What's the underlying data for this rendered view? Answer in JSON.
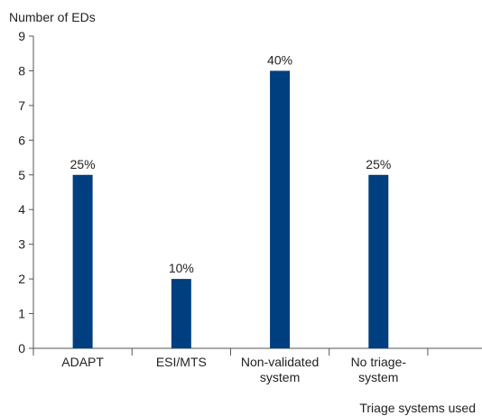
{
  "chart_data": {
    "type": "bar",
    "ylabel": "Number of EDs",
    "xlabel": "Triage systems used",
    "categories": [
      [
        "ADAPT"
      ],
      [
        "ESI/MTS"
      ],
      [
        "Non-validated",
        "system"
      ],
      [
        "No triage-",
        "system"
      ]
    ],
    "values": [
      5,
      2,
      8,
      5
    ],
    "data_labels": [
      "25%",
      "10%",
      "40%",
      "25%"
    ],
    "ylim": [
      0,
      9
    ],
    "yticks": [
      0,
      1,
      2,
      3,
      4,
      5,
      6,
      7,
      8,
      9
    ],
    "grid": false,
    "bar_color": "#003f7f"
  }
}
